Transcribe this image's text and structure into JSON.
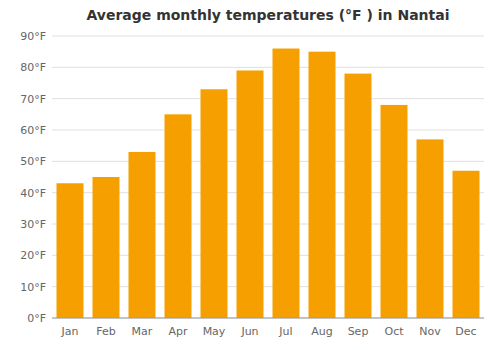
{
  "chart_data": {
    "type": "bar",
    "title": "Average monthly temperatures (°F ) in Nantai",
    "categories": [
      "Jan",
      "Feb",
      "Mar",
      "Apr",
      "May",
      "Jun",
      "Jul",
      "Aug",
      "Sep",
      "Oct",
      "Nov",
      "Dec"
    ],
    "values": [
      43,
      45,
      53,
      65,
      73,
      79,
      86,
      85,
      78,
      68,
      57,
      47
    ],
    "color": "#F5A000",
    "ylim": [
      0,
      90
    ],
    "yticks": [
      {
        "value": 0,
        "label": "0°F"
      },
      {
        "value": 10,
        "label": "10°F"
      },
      {
        "value": 20,
        "label": "20°F"
      },
      {
        "value": 30,
        "label": "30°F"
      },
      {
        "value": 40,
        "label": "40°F"
      },
      {
        "value": 50,
        "label": "50°F"
      },
      {
        "value": 60,
        "label": "60°F"
      },
      {
        "value": 70,
        "label": "70°F"
      },
      {
        "value": 80,
        "label": "80°F"
      },
      {
        "value": 90,
        "label": "90°F"
      }
    ],
    "grid": true
  }
}
